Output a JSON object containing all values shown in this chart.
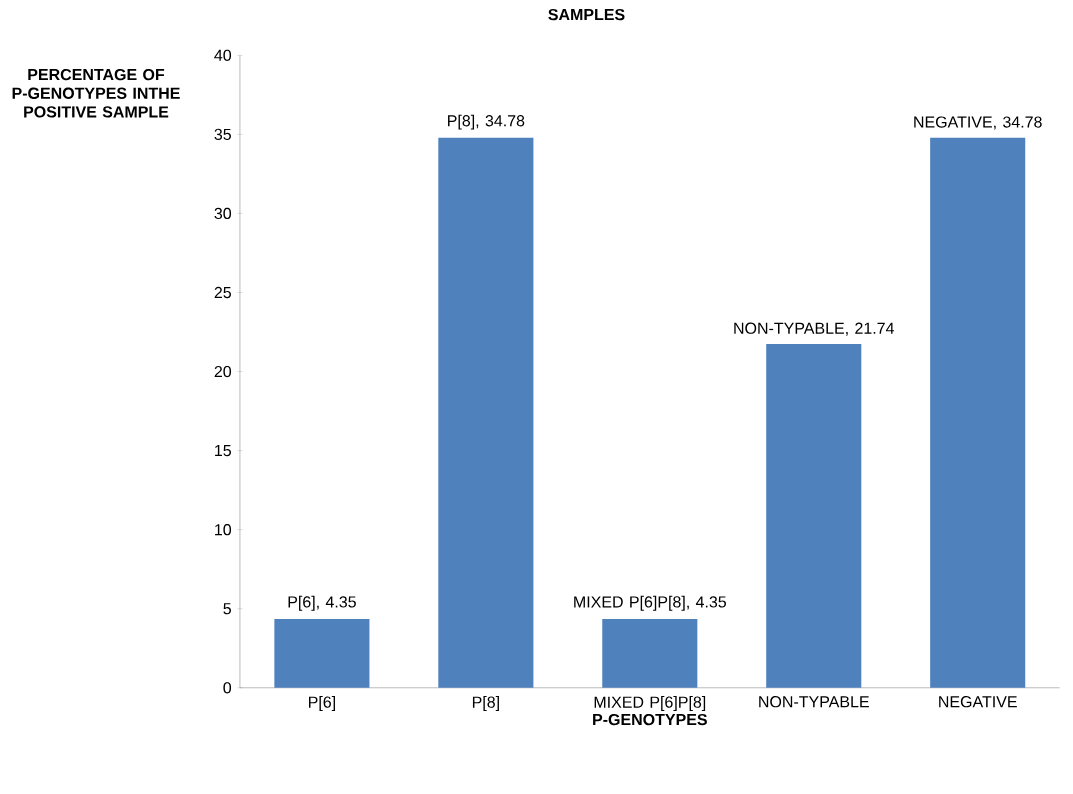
{
  "chart_data": {
    "type": "bar",
    "title": "SAMPLES",
    "xlabel": "P-GENOTYPES",
    "ylabel": "PERCENTAGE OF P-GENOTYPES INTHE POSITIVE SAMPLE",
    "categories": [
      "P[6]",
      "P[8]",
      "MIXED P[6]P[8]",
      "NON-TYPABLE",
      "NEGATIVE"
    ],
    "values": [
      4.35,
      34.78,
      4.35,
      21.74,
      34.78
    ],
    "value_labels": [
      "P[6], 4.35",
      "P[8], 34.78",
      "MIXED P[6]P[8], 4.35",
      "NON-TYPABLE, 21.74",
      "NEGATIVE, 34.78"
    ],
    "color": "#4f81bd",
    "ylim": [
      0,
      40
    ],
    "yticks": [
      0,
      5,
      10,
      15,
      20,
      25,
      30,
      35,
      40
    ]
  }
}
